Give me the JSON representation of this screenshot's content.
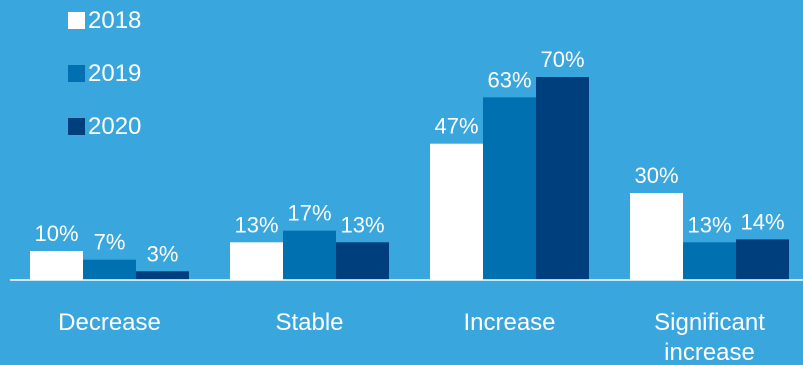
{
  "chart_data": {
    "type": "bar",
    "categories": [
      "Decrease",
      "Stable",
      "Increase",
      "Significant increase"
    ],
    "category_lines": [
      [
        "Decrease"
      ],
      [
        "Stable"
      ],
      [
        "Increase"
      ],
      [
        "Significant",
        "increase"
      ]
    ],
    "series": [
      {
        "name": "2018",
        "values": [
          10,
          13,
          47,
          30
        ],
        "labels": [
          "10%",
          "13%",
          "47%",
          "30%"
        ],
        "color": "#ffffff"
      },
      {
        "name": "2019",
        "values": [
          7,
          17,
          63,
          13
        ],
        "labels": [
          "7%",
          "17%",
          "63%",
          "13%"
        ],
        "color": "#0070b0"
      },
      {
        "name": "2020",
        "values": [
          3,
          13,
          70,
          14
        ],
        "labels": [
          "3%",
          "13%",
          "70%",
          "14%"
        ],
        "color": "#003f7d"
      }
    ],
    "ylim": [
      0,
      80
    ],
    "grid": false,
    "legend": "top-left",
    "title": "",
    "xlabel": "",
    "ylabel": ""
  },
  "colors": {
    "background": "#39a7dd",
    "axis": "#ffffff",
    "text": "#ffffff"
  }
}
